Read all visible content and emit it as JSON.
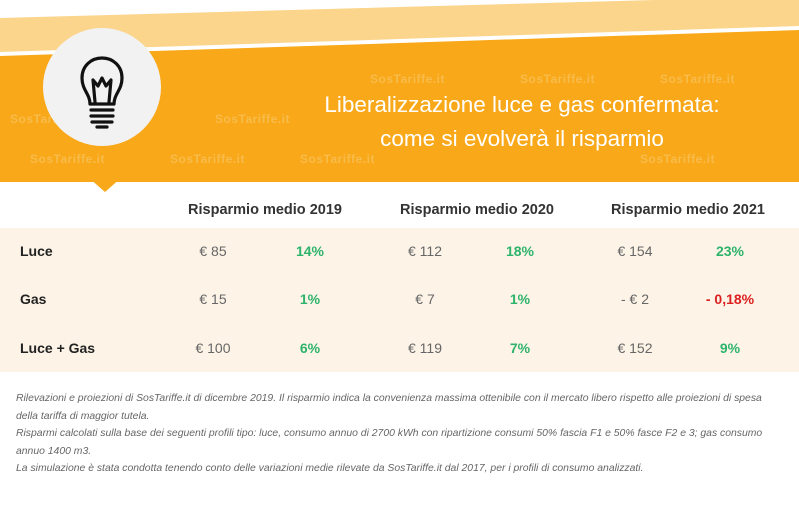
{
  "header": {
    "title_line1": "Liberalizzazione luce e gas confermata:",
    "title_line2": "come si evolverà il risparmio",
    "watermark": "SosTariffe.it",
    "colors": {
      "orange": "#f8a818",
      "light_stripe": "#fbd58c",
      "icon_bg": "#f2f2f2"
    },
    "icon": "lightbulb-icon"
  },
  "table": {
    "columns": [
      "Risparmio medio 2019",
      "Risparmio medio 2020",
      "Risparmio medio 2021"
    ],
    "rows": [
      {
        "label": "Luce",
        "values": [
          "€ 85",
          "14%",
          "€ 112",
          "18%",
          "€ 154",
          "23%"
        ]
      },
      {
        "label": "Gas",
        "values": [
          "€ 15",
          "1%",
          "€ 7",
          "1%",
          "- € 2",
          "- 0,18%"
        ]
      },
      {
        "label": "Luce + Gas",
        "values": [
          "€ 100",
          "6%",
          "€ 119",
          "7%",
          "€ 152",
          "9%"
        ]
      }
    ],
    "colors": {
      "positive": "#2db36b",
      "negative": "#dc1f1f",
      "row_bg": "#fdf4e7"
    }
  },
  "notes": [
    "Rilevazioni e proiezioni di SosTariffe.it di dicembre 2019. Il risparmio indica la convenienza massima ottenibile con il mercato libero rispetto alle proiezioni di spesa della tariffa di maggior tutela.",
    "Risparmi calcolati sulla base dei seguenti profili tipo: luce, consumo annuo di 2700 kWh con ripartizione consumi 50% fascia F1 e 50% fasce F2 e 3; gas consumo annuo 1400 m3.",
    "La simulazione è stata condotta tenendo conto delle variazioni medie rilevate da SosTariffe.it dal 2017, per i profili di consumo analizzati."
  ]
}
